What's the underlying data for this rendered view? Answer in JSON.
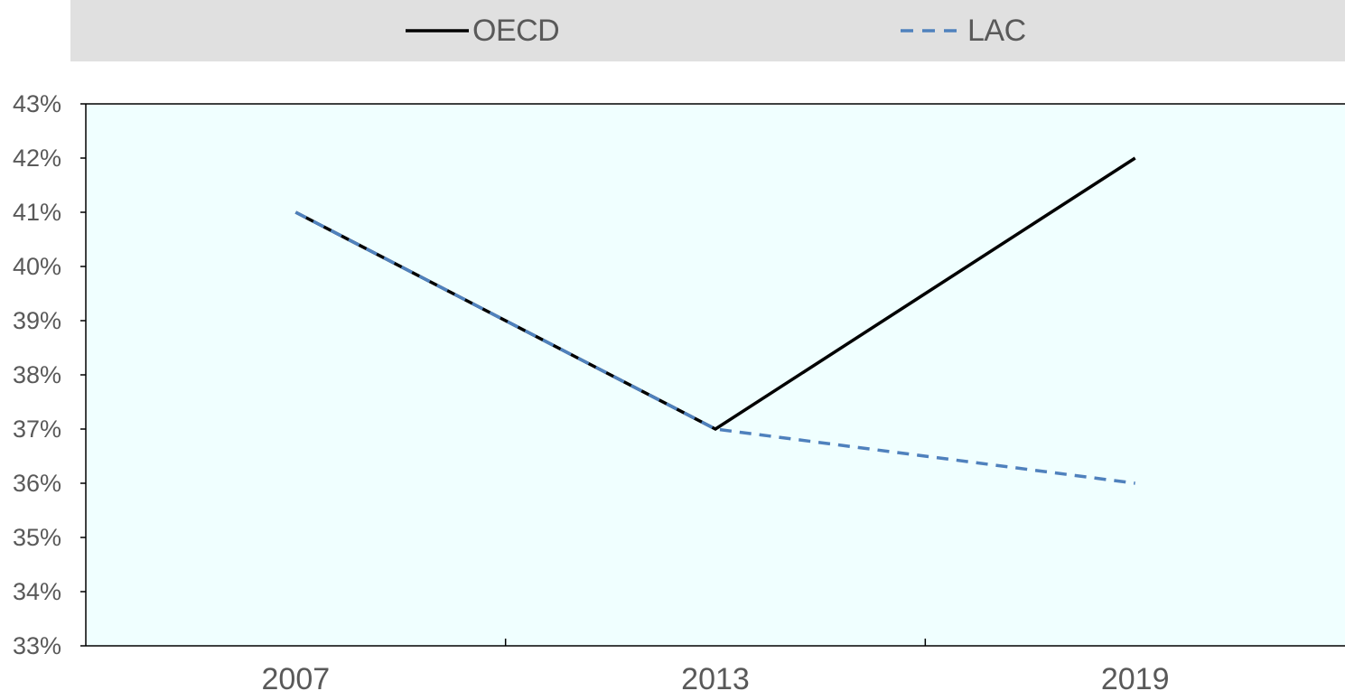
{
  "chart_data": {
    "type": "line",
    "title": "",
    "xlabel": "",
    "ylabel": "",
    "categories": [
      "2007",
      "2013",
      "2019"
    ],
    "series": [
      {
        "name": "OECD",
        "values": [
          41,
          37,
          42
        ],
        "color": "#000000",
        "style": "solid"
      },
      {
        "name": "LAC",
        "values": [
          41,
          37,
          36
        ],
        "color": "#4f81bd",
        "style": "dashed"
      }
    ],
    "ylim": [
      33,
      43
    ],
    "yticks": [
      "33%",
      "34%",
      "35%",
      "36%",
      "37%",
      "38%",
      "39%",
      "40%",
      "41%",
      "42%",
      "43%"
    ],
    "legend_position": "top",
    "grid": false,
    "plot_background": "#f0ffff"
  }
}
